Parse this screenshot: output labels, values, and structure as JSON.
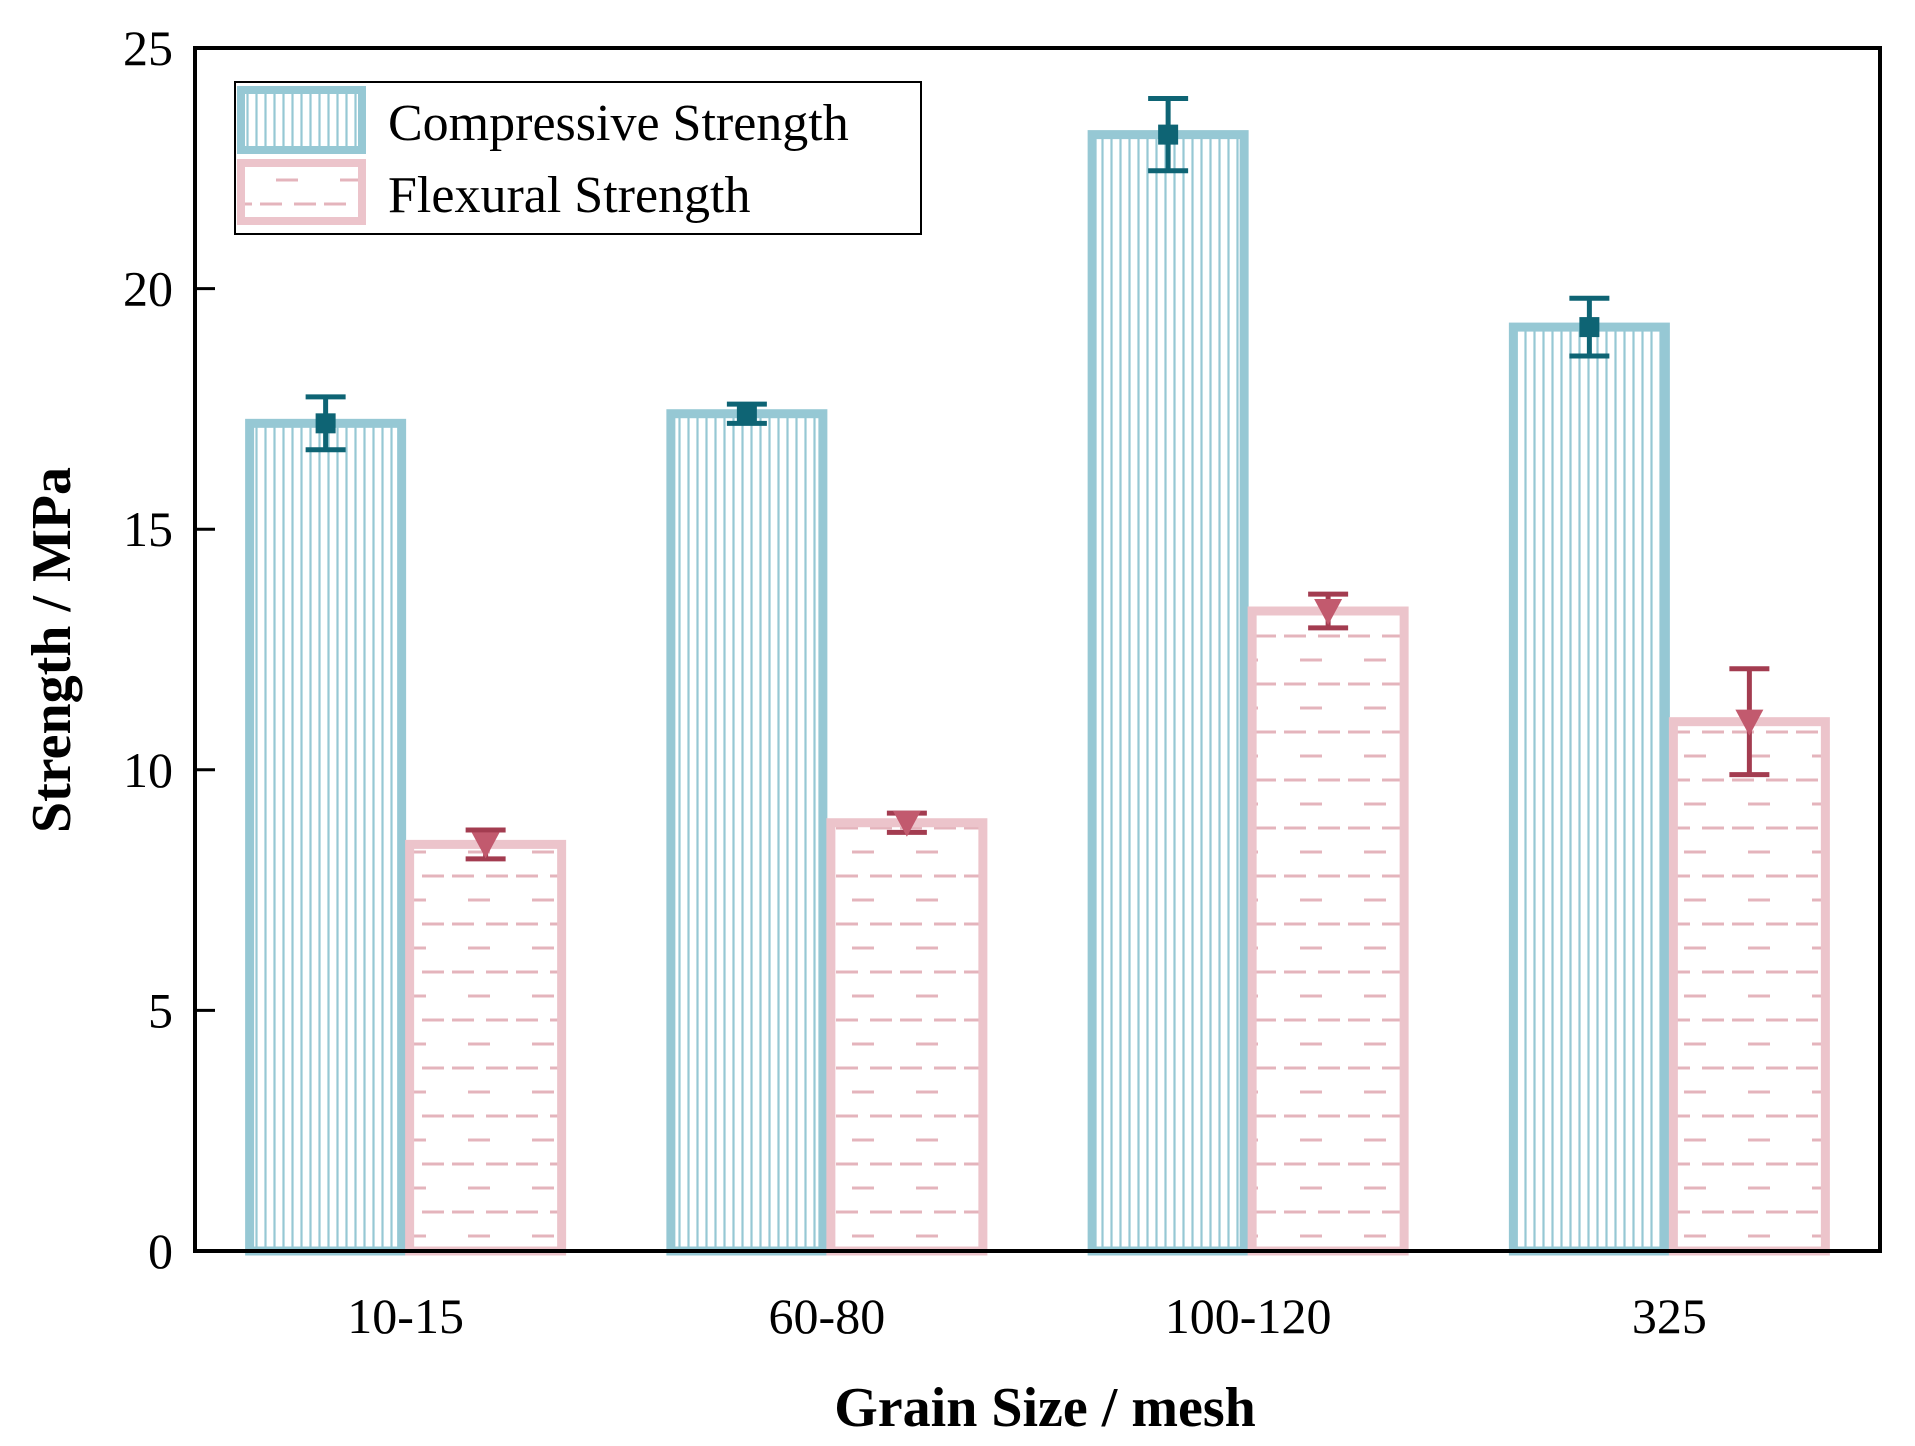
{
  "chart_data": {
    "type": "bar",
    "title": "",
    "xlabel": "Grain Size / mesh",
    "ylabel": "Strength / MPa",
    "ylim": [
      0,
      25
    ],
    "yticks": [
      0,
      5,
      10,
      15,
      20,
      25
    ],
    "categories": [
      "10-15",
      "60-80",
      "100-120",
      "325"
    ],
    "legend_position": "top-left",
    "series": [
      {
        "name": "Compressive Strength",
        "values": [
          17.2,
          17.4,
          23.2,
          19.2
        ],
        "errors": [
          0.55,
          0.2,
          0.75,
          0.6
        ],
        "color": "#96c8d4",
        "marker_color": "#0e6474",
        "hatch": "vertical"
      },
      {
        "name": "Flexural Strength",
        "values": [
          8.45,
          8.9,
          13.3,
          11.0
        ],
        "errors": [
          0.3,
          0.2,
          0.35,
          1.1
        ],
        "color": "#ecc4cb",
        "marker_color": "#a33c50",
        "hatch": "dashed-horizontal"
      }
    ]
  }
}
